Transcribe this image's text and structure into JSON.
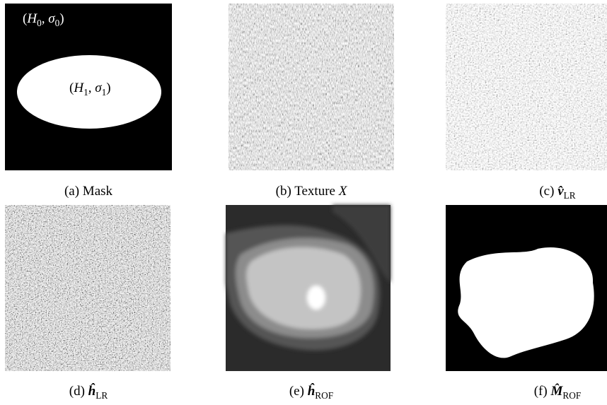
{
  "panels": [
    {
      "caption": [
        {
          "text": "(a) Mask"
        }
      ],
      "annotations": [
        {
          "parts": [
            {
              "text": "("
            },
            {
              "text": "H",
              "style": "italic"
            },
            {
              "text": "0",
              "style": "sub"
            },
            {
              "text": ", "
            },
            {
              "text": "σ",
              "style": "italic"
            },
            {
              "text": "0",
              "style": "sub"
            },
            {
              "text": ")"
            }
          ]
        },
        {
          "parts": [
            {
              "text": "("
            },
            {
              "text": "H",
              "style": "italic"
            },
            {
              "text": "1",
              "style": "sub"
            },
            {
              "text": ", "
            },
            {
              "text": "σ",
              "style": "italic"
            },
            {
              "text": "1",
              "style": "sub"
            },
            {
              "text": ")"
            }
          ]
        }
      ]
    },
    {
      "caption": [
        {
          "text": "(b) Texture "
        },
        {
          "text": "X",
          "style": "italic"
        }
      ]
    },
    {
      "caption": [
        {
          "text": "(c) "
        },
        {
          "text": "v̂",
          "style": "bold-italic"
        },
        {
          "text": "LR",
          "style": "sub"
        }
      ]
    },
    {
      "caption": [
        {
          "text": "(d) "
        },
        {
          "text": "ĥ",
          "style": "bold-italic"
        },
        {
          "text": "LR",
          "style": "sub"
        }
      ]
    },
    {
      "caption": [
        {
          "text": "(e) "
        },
        {
          "text": "ĥ",
          "style": "bold-italic"
        },
        {
          "text": "ROF",
          "style": "sub"
        }
      ]
    },
    {
      "caption": [
        {
          "text": "(f) "
        },
        {
          "text": "M̂",
          "style": "bold-italic"
        },
        {
          "text": "ROF",
          "style": "sub"
        }
      ]
    }
  ]
}
